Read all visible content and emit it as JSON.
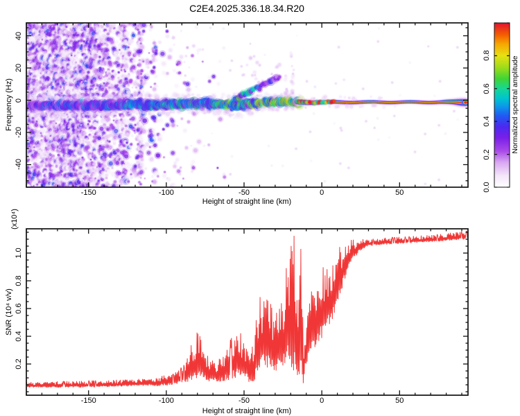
{
  "title": "C2E4.2025.336.18.34.R20",
  "chart_data": [
    {
      "type": "heatmap",
      "title": "",
      "xlabel": "Height of straight line (km)",
      "ylabel": "Frequency (Hz)",
      "xlim": [
        -190,
        94
      ],
      "ylim": [
        -54,
        48
      ],
      "xticks": {
        "values": [
          -150,
          -100,
          -50,
          0,
          50
        ],
        "labels": [
          "-150",
          "-100",
          "-50",
          "0",
          "50"
        ],
        "minor_step": 10
      },
      "yticks": {
        "values": [
          -40,
          -20,
          0,
          20,
          40
        ],
        "labels": [
          "-40",
          "-20",
          "0",
          "20",
          "40"
        ],
        "minor_step": 5
      },
      "colorbar": {
        "label": "Normalized spectral amplitude",
        "range": [
          0,
          1
        ],
        "ticks": {
          "values": [
            0,
            0.2,
            0.4,
            0.6,
            0.8
          ],
          "labels": [
            "0.0",
            "0.2",
            "0.4",
            "0.6",
            "0.8"
          ]
        },
        "stops": [
          [
            0.0,
            "#ffffff"
          ],
          [
            0.07,
            "#f3e6fa"
          ],
          [
            0.15,
            "#d9a8f2"
          ],
          [
            0.22,
            "#a94ae8"
          ],
          [
            0.3,
            "#7a1fe8"
          ],
          [
            0.37,
            "#4b2af0"
          ],
          [
            0.43,
            "#2355f2"
          ],
          [
            0.49,
            "#0c96ea"
          ],
          [
            0.54,
            "#00c4cf"
          ],
          [
            0.6,
            "#16d795"
          ],
          [
            0.66,
            "#3fd435"
          ],
          [
            0.73,
            "#a0dc1a"
          ],
          [
            0.8,
            "#e6e112"
          ],
          [
            0.87,
            "#f7a702"
          ],
          [
            0.93,
            "#f35b00"
          ],
          [
            1.0,
            "#e31230"
          ]
        ]
      },
      "signal_track": {
        "x": [
          -190,
          -160,
          -130,
          -100,
          -80,
          -65,
          -55,
          -48,
          -40,
          -32,
          -26,
          -20,
          -16
        ],
        "center_hz": [
          -3.5,
          -3.2,
          -2.8,
          -2.6,
          -2.2,
          -2.6,
          -3.2,
          -2.6,
          -1.8,
          -1.2,
          -0.9,
          -1.1,
          -1.2
        ],
        "width_hz": [
          2.6,
          2.6,
          2.6,
          2.6,
          2.5,
          2.6,
          3.2,
          2.8,
          2.4,
          2.2,
          2.0,
          1.9,
          1.8
        ],
        "intensity": [
          0.4,
          0.42,
          0.46,
          0.52,
          0.55,
          0.58,
          0.6,
          0.65,
          0.72,
          0.8,
          0.85,
          0.9,
          0.92
        ]
      },
      "noise_density": {
        "x": [
          -190,
          -160,
          -145,
          -130,
          -118,
          -105,
          -90,
          -70,
          -50,
          -30,
          94
        ],
        "d": [
          0.9,
          0.85,
          0.6,
          0.35,
          0.15,
          0.07,
          0.035,
          0.018,
          0.01,
          0.005,
          0.004
        ],
        "columns": [
          {
            "x": -117,
            "boost": 5
          },
          {
            "x": -107,
            "boost": 3
          },
          {
            "x": -127,
            "boost": 3
          }
        ]
      },
      "branch": {
        "x": [
          -56,
          -50,
          -44,
          -38,
          -33,
          -27
        ],
        "hz": [
          0.5,
          3,
          6,
          9,
          12,
          15
        ],
        "intensity": [
          0.5,
          0.55,
          0.5,
          0.4,
          0.3,
          0.22
        ],
        "scatter_top_hz": 27
      },
      "streaks": [
        {
          "x": -19,
          "hz_from": 2,
          "hz_to": 30
        },
        {
          "x": -23,
          "hz_from": 2,
          "hz_to": 16
        }
      ],
      "line": {
        "x_start": -16,
        "x_end": 94,
        "center_hz": -1.25,
        "wiggle_hz": 0.25,
        "width_mod": {
          "x": [
            -16,
            -8,
            0,
            20,
            50,
            75,
            84,
            90,
            94
          ],
          "m": [
            1.45,
            1.3,
            1.1,
            0.95,
            0.9,
            0.95,
            1.35,
            1.9,
            1.75
          ]
        },
        "layers": [
          [
            0.06,
            16,
            0.16
          ],
          [
            0.1,
            13,
            0.3
          ],
          [
            0.2,
            9.5,
            0.55
          ],
          [
            0.32,
            7,
            0.8
          ],
          [
            0.45,
            5.4,
            0.9
          ],
          [
            0.6,
            4.2,
            0.95
          ],
          [
            0.72,
            3.2,
            0.95
          ],
          [
            0.84,
            2.3,
            0.95
          ],
          [
            0.97,
            1.5,
            1.0
          ]
        ],
        "end_blob_x": 92.5
      }
    },
    {
      "type": "line",
      "title": "",
      "xlabel": "Height of straight line (km)",
      "ylabel": "SNR (10⁴ v/v)",
      "ylabel_multiplier": "(x10⁴)",
      "color": "#f03636",
      "xlim": [
        -190,
        94
      ],
      "ylim": [
        -0.025,
        1.175
      ],
      "xticks": {
        "values": [
          -150,
          -100,
          -50,
          0,
          50
        ],
        "labels": [
          "-150",
          "-100",
          "-50",
          "0",
          "50"
        ],
        "minor_step": 10
      },
      "yticks": {
        "values": [
          0.2,
          0.4,
          0.6,
          0.8,
          1.0
        ],
        "labels": [
          "0.2",
          "0.4",
          "0.6",
          "0.8",
          "1.0"
        ],
        "minor_step": 0.05
      },
      "series": [
        {
          "name": "SNR",
          "envelope": {
            "x": [
              -190,
              -150,
              -120,
              -105,
              -95,
              -88,
              -83,
              -79,
              -75,
              -70,
              -65,
              -60,
              -55,
              -50,
              -46,
              -43,
              -40,
              -37,
              -33,
              -29,
              -25,
              -21,
              -18,
              -15,
              -13,
              -12,
              -10,
              -8,
              -5,
              -2,
              1,
              4,
              8,
              12,
              16,
              20,
              25,
              30,
              40,
              55,
              70,
              85,
              94
            ],
            "lo": [
              0.03,
              0.03,
              0.04,
              0.04,
              0.05,
              0.06,
              0.08,
              0.1,
              0.08,
              0.07,
              0.07,
              0.08,
              0.1,
              0.1,
              0.06,
              0.08,
              0.15,
              0.18,
              0.15,
              0.15,
              0.18,
              0.2,
              0.15,
              0.08,
              0.1,
              0.05,
              0.2,
              0.25,
              0.3,
              0.35,
              0.4,
              0.45,
              0.55,
              0.7,
              0.85,
              0.95,
              1.02,
              1.05,
              1.06,
              1.07,
              1.08,
              1.09,
              1.1
            ],
            "hi": [
              0.07,
              0.08,
              0.09,
              0.11,
              0.13,
              0.2,
              0.38,
              0.45,
              0.3,
              0.22,
              0.25,
              0.35,
              0.45,
              0.4,
              0.25,
              0.45,
              0.7,
              0.73,
              0.65,
              0.6,
              0.65,
              1.1,
              1.15,
              0.6,
              1.17,
              0.35,
              0.5,
              0.7,
              0.75,
              0.85,
              0.9,
              0.95,
              1.0,
              1.05,
              1.08,
              1.1,
              1.1,
              1.1,
              1.11,
              1.12,
              1.13,
              1.15,
              1.16
            ]
          }
        }
      ]
    }
  ]
}
